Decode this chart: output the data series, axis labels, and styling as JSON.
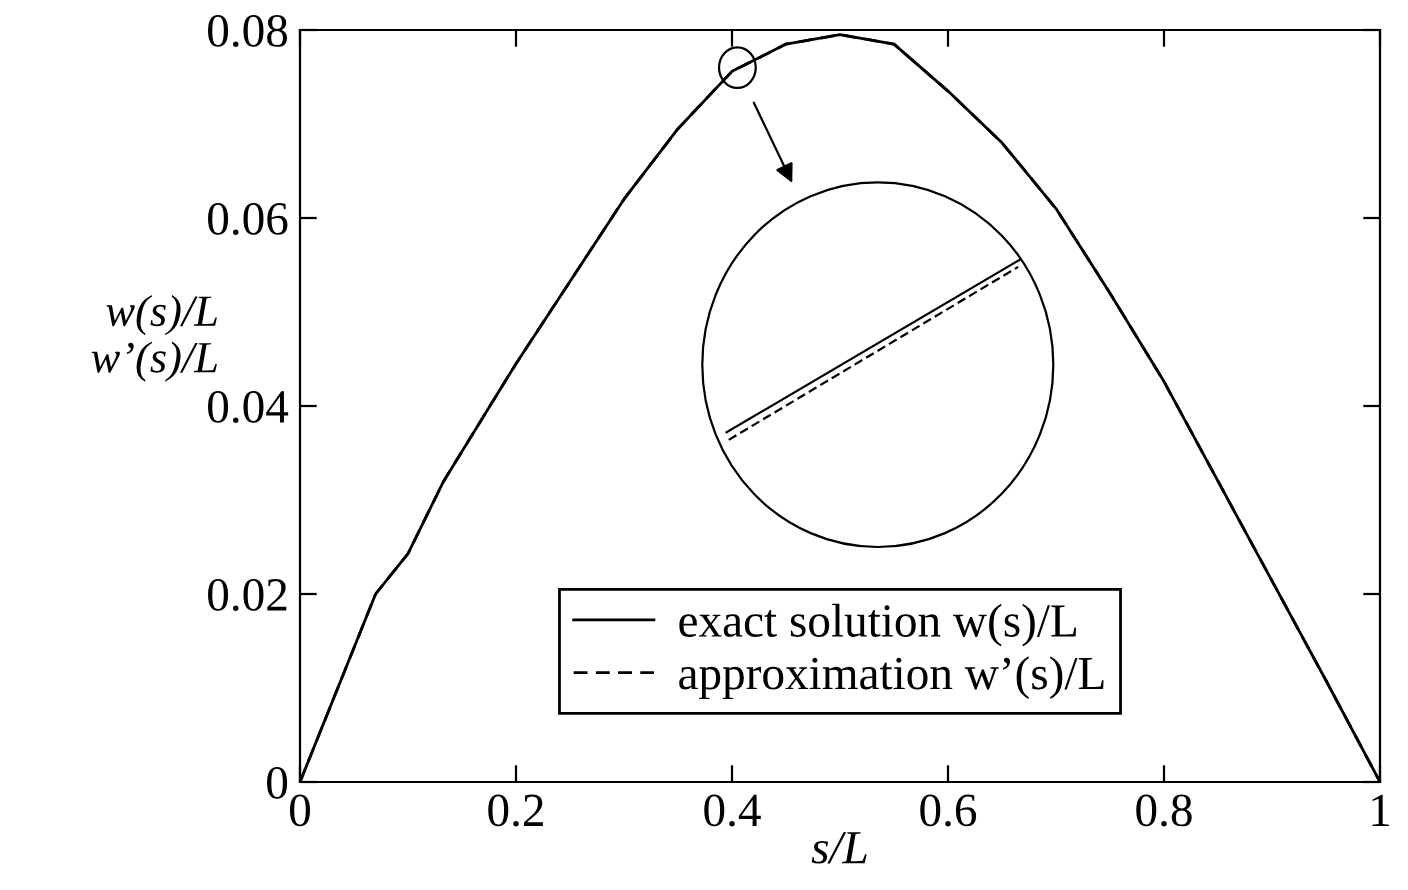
{
  "chart_data": {
    "type": "line",
    "xlabel": "s/L",
    "ylabel": "w(s)/L\nw’(s)/L",
    "x": [
      0,
      0.035,
      0.07,
      0.1,
      0.133,
      0.2,
      0.26,
      0.3,
      0.35,
      0.4,
      0.45,
      0.5,
      0.55,
      0.6,
      0.65,
      0.7,
      0.75,
      0.8,
      0.85,
      0.9,
      0.95,
      1
    ],
    "series": [
      {
        "name": "exact solution w(s)/L",
        "color": "#000000",
        "line_style": "solid",
        "values": [
          0,
          0.01,
          0.02,
          0.0243,
          0.032,
          0.0445,
          0.055,
          0.062,
          0.0695,
          0.0756,
          0.0785,
          0.0795,
          0.0785,
          0.0735,
          0.068,
          0.061,
          0.052,
          0.0426,
          0.032,
          0.0214,
          0.0108,
          0
        ]
      },
      {
        "name": "approximation w’(s)/L",
        "color": "#000000",
        "line_style": "dashed",
        "values": [
          0,
          0.01,
          0.02,
          0.0243,
          0.032,
          0.0445,
          0.055,
          0.062,
          0.0695,
          0.0756,
          0.0785,
          0.0795,
          0.0785,
          0.0735,
          0.068,
          0.061,
          0.052,
          0.0426,
          0.032,
          0.0214,
          0.0108,
          0
        ]
      }
    ],
    "xlim": [
      0,
      1
    ],
    "xticks": [
      0,
      0.2,
      0.4,
      0.6,
      0.8,
      1
    ],
    "ylim": [
      0,
      0.08
    ],
    "yticks": [
      0,
      0.02,
      0.04,
      0.06,
      0.08
    ],
    "grid": false,
    "legend": "bottom"
  }
}
